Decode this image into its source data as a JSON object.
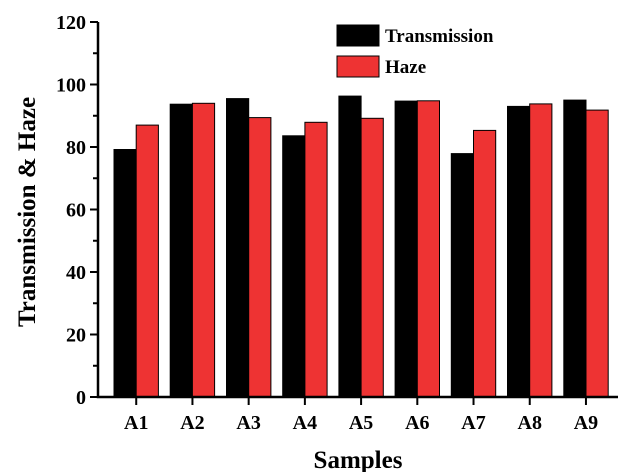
{
  "chart_data": {
    "type": "bar",
    "categories": [
      "A1",
      "A2",
      "A3",
      "A4",
      "A5",
      "A6",
      "A7",
      "A8",
      "A9"
    ],
    "series": [
      {
        "name": "Transmission",
        "color": "#000000",
        "values": [
          79.2,
          93.7,
          95.5,
          83.6,
          96.3,
          94.7,
          77.9,
          93.0,
          95.0
        ]
      },
      {
        "name": "Haze",
        "color": "#ee3333",
        "values": [
          87.0,
          94.0,
          89.4,
          87.9,
          89.2,
          94.8,
          85.3,
          93.8,
          91.8
        ]
      }
    ],
    "xlabel": "Samples",
    "ylabel": "Transmission & Haze",
    "ylim": [
      0,
      120
    ],
    "yticks": [
      0,
      20,
      40,
      60,
      80,
      100,
      120
    ],
    "grid": false,
    "legend_position": "top-right"
  }
}
